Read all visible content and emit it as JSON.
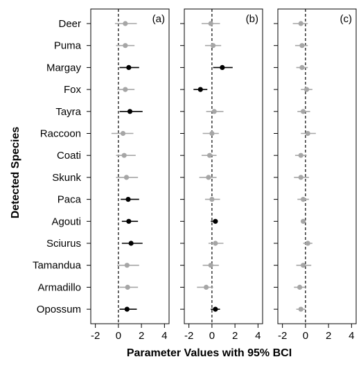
{
  "chart_data": {
    "type": "scatter",
    "subtype": "forest-plot (point estimates with 95% credible intervals), 3 panels",
    "ylabel": "Detected Species",
    "xlabel": "Parameter Values with 95% BCI",
    "categories": [
      "Deer",
      "Puma",
      "Margay",
      "Fox",
      "Tayra",
      "Raccoon",
      "Coati",
      "Skunk",
      "Paca",
      "Agouti",
      "Sciurus",
      "Tamandua",
      "Armadillo",
      "Opossum"
    ],
    "xlim": [
      -2.4,
      4.4
    ],
    "xticks": [
      -2,
      0,
      2,
      4
    ],
    "reference_line": {
      "x": 0,
      "style": "dashed"
    },
    "colors": {
      "significant": "#000000",
      "not_significant": "#a6a6a6"
    },
    "panels": [
      {
        "label": "(a)",
        "est": [
          0.6,
          0.6,
          0.9,
          0.6,
          1.0,
          0.4,
          0.5,
          0.7,
          0.85,
          0.9,
          1.1,
          0.75,
          0.8,
          0.75
        ],
        "low": [
          -0.3,
          -0.2,
          0.1,
          -0.1,
          0.1,
          -0.6,
          -0.2,
          -0.2,
          0.2,
          0.3,
          0.3,
          -0.1,
          0.1,
          0.1
        ],
        "high": [
          1.6,
          1.4,
          1.8,
          1.4,
          2.1,
          1.3,
          1.5,
          1.7,
          1.8,
          1.7,
          2.1,
          1.8,
          1.7,
          1.6
        ],
        "significant": [
          false,
          false,
          true,
          false,
          true,
          false,
          false,
          false,
          true,
          true,
          true,
          false,
          false,
          true
        ]
      },
      {
        "label": "(b)",
        "est": [
          -0.1,
          0.1,
          0.9,
          -1.0,
          0.2,
          0.0,
          -0.2,
          -0.3,
          0.0,
          0.3,
          0.3,
          -0.1,
          -0.5,
          0.3
        ],
        "low": [
          -0.9,
          -0.6,
          0.1,
          -1.6,
          -0.5,
          -0.8,
          -0.9,
          -1.1,
          -0.6,
          -0.1,
          -0.3,
          -0.8,
          -1.3,
          -0.1
        ],
        "high": [
          0.7,
          0.8,
          1.8,
          -0.4,
          1.0,
          0.6,
          0.4,
          0.4,
          0.7,
          0.5,
          1.0,
          0.6,
          0.1,
          0.7
        ],
        "significant": [
          false,
          false,
          true,
          true,
          false,
          false,
          false,
          false,
          false,
          true,
          false,
          false,
          false,
          true
        ]
      },
      {
        "label": "(c)",
        "est": [
          -0.4,
          -0.3,
          -0.3,
          0.1,
          -0.2,
          0.2,
          -0.4,
          -0.4,
          -0.2,
          -0.2,
          0.2,
          -0.2,
          -0.5,
          -0.4
        ],
        "low": [
          -1.1,
          -0.9,
          -0.8,
          -0.4,
          -0.7,
          -0.4,
          -0.9,
          -1.0,
          -0.7,
          -0.4,
          -0.2,
          -0.8,
          -1.0,
          -0.8
        ],
        "high": [
          0.2,
          0.2,
          0.2,
          0.6,
          0.4,
          0.9,
          0.1,
          0.3,
          0.3,
          0.0,
          0.6,
          0.5,
          0.0,
          0.0
        ],
        "significant": [
          false,
          false,
          false,
          false,
          false,
          false,
          false,
          false,
          false,
          false,
          false,
          false,
          false,
          false
        ]
      }
    ]
  }
}
